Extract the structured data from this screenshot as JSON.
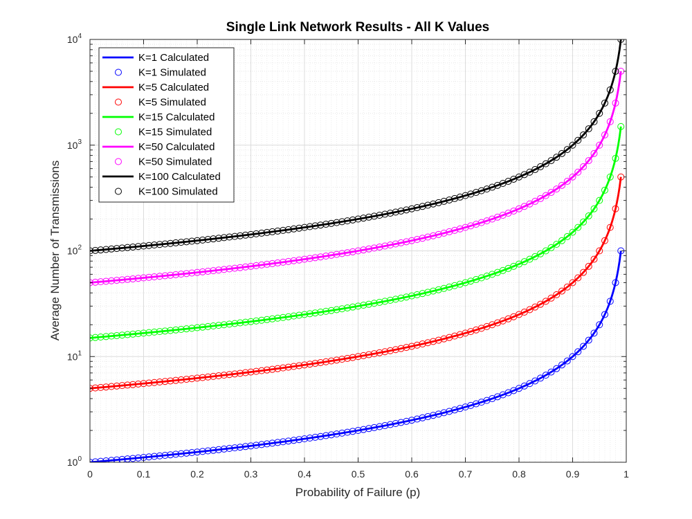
{
  "chart_data": {
    "type": "line",
    "title": "Single Link Network Results - All K Values",
    "xlabel": "Probability of Failure (p)",
    "ylabel": "Average Number of Transmissions",
    "xlim": [
      0,
      1
    ],
    "ylim": [
      1,
      10000
    ],
    "yscale": "log",
    "grid": true,
    "minor_grid": true,
    "legend_position": "top-left",
    "x_ticks": [
      "0",
      "0.1",
      "0.2",
      "0.3",
      "0.4",
      "0.5",
      "0.6",
      "0.7",
      "0.8",
      "0.9",
      "1"
    ],
    "y_ticks": [
      {
        "base": "10",
        "exp": "0"
      },
      {
        "base": "10",
        "exp": "1"
      },
      {
        "base": "10",
        "exp": "2"
      },
      {
        "base": "10",
        "exp": "3"
      },
      {
        "base": "10",
        "exp": "4"
      }
    ],
    "formula": "K / (1 - p)",
    "calculated_p_range": [
      0,
      0.99
    ],
    "simulated_p": [
      0,
      0.01,
      0.02,
      0.03,
      0.04,
      0.05,
      0.06,
      0.07,
      0.08,
      0.09,
      0.1,
      0.11,
      0.12,
      0.13,
      0.14,
      0.15,
      0.16,
      0.17,
      0.18,
      0.19,
      0.2,
      0.21,
      0.22,
      0.23,
      0.24,
      0.25,
      0.26,
      0.27,
      0.28,
      0.29,
      0.3,
      0.31,
      0.32,
      0.33,
      0.34,
      0.35,
      0.36,
      0.37,
      0.38,
      0.39,
      0.4,
      0.41,
      0.42,
      0.43,
      0.44,
      0.45,
      0.46,
      0.47,
      0.48,
      0.49,
      0.5,
      0.51,
      0.52,
      0.53,
      0.54,
      0.55,
      0.56,
      0.57,
      0.58,
      0.59,
      0.6,
      0.61,
      0.62,
      0.63,
      0.64,
      0.65,
      0.66,
      0.67,
      0.68,
      0.69,
      0.7,
      0.71,
      0.72,
      0.73,
      0.74,
      0.75,
      0.76,
      0.77,
      0.78,
      0.79,
      0.8,
      0.81,
      0.82,
      0.83,
      0.84,
      0.85,
      0.86,
      0.87,
      0.88,
      0.89,
      0.9,
      0.91,
      0.92,
      0.93,
      0.94,
      0.95,
      0.96,
      0.97,
      0.98,
      0.99
    ],
    "series": [
      {
        "name": "K=1 Calculated",
        "K": 1,
        "kind": "line",
        "color": "#0000ff"
      },
      {
        "name": "K=1 Simulated",
        "K": 1,
        "kind": "marker",
        "color": "#0000ff"
      },
      {
        "name": "K=5 Calculated",
        "K": 5,
        "kind": "line",
        "color": "#ff0000"
      },
      {
        "name": "K=5 Simulated",
        "K": 5,
        "kind": "marker",
        "color": "#ff0000"
      },
      {
        "name": "K=15 Calculated",
        "K": 15,
        "kind": "line",
        "color": "#00ff00"
      },
      {
        "name": "K=15 Simulated",
        "K": 15,
        "kind": "marker",
        "color": "#00ff00"
      },
      {
        "name": "K=50 Calculated",
        "K": 50,
        "kind": "line",
        "color": "#ff00ff"
      },
      {
        "name": "K=50 Simulated",
        "K": 50,
        "kind": "marker",
        "color": "#ff00ff"
      },
      {
        "name": "K=100 Calculated",
        "K": 100,
        "kind": "line",
        "color": "#000000"
      },
      {
        "name": "K=100 Simulated",
        "K": 100,
        "kind": "marker",
        "color": "#000000"
      }
    ]
  }
}
